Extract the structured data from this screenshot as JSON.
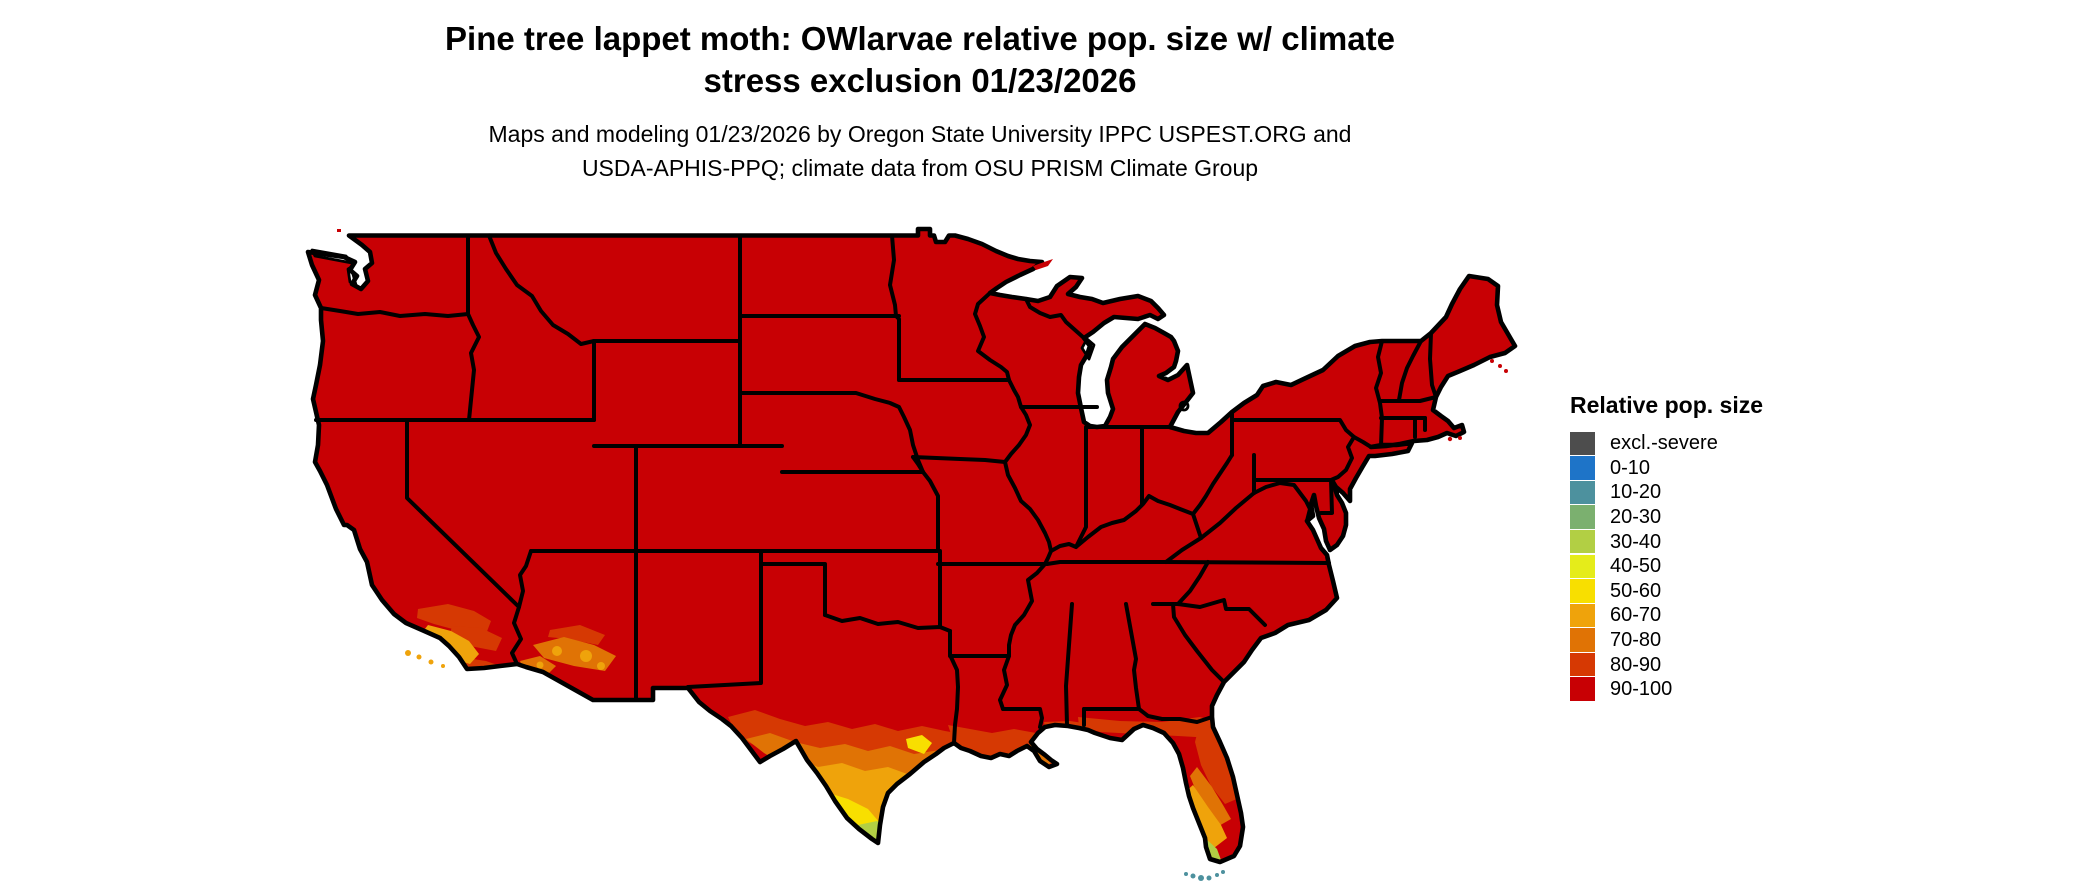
{
  "header": {
    "title": "Pine tree lappet moth: OWlarvae relative pop. size w/ climate\nstress exclusion 01/23/2026",
    "subtitle": "Maps and modeling 01/23/2026 by Oregon State University IPPC USPEST.ORG and\nUSDA-APHIS-PPQ; climate data from OSU PRISM Climate Group"
  },
  "legend": {
    "title": "Relative pop. size",
    "items": [
      {
        "label": "excl.-severe",
        "color": "#4d4d4d"
      },
      {
        "label": "0-10",
        "color": "#1e74c8"
      },
      {
        "label": "10-20",
        "color": "#4d919e"
      },
      {
        "label": "20-30",
        "color": "#7bb06f"
      },
      {
        "label": "30-40",
        "color": "#b2cf44"
      },
      {
        "label": "40-50",
        "color": "#e5ec1a"
      },
      {
        "label": "50-60",
        "color": "#f8df00"
      },
      {
        "label": "60-70",
        "color": "#efa30b"
      },
      {
        "label": "70-80",
        "color": "#e07305"
      },
      {
        "label": "80-90",
        "color": "#d63903"
      },
      {
        "label": "90-100",
        "color": "#c80004"
      }
    ]
  },
  "map": {
    "region": "Contiguous United States",
    "border_color": "#000000",
    "water_color": "#ffffff",
    "dominant_class": "90-100",
    "low_value_areas": [
      "southern Texas (Rio Grande Valley down to 30-40)",
      "central and southern Florida (60-70 to 30-40), Florida Keys 10-20",
      "Gulf Coast fringe of Louisiana, Mississippi, Alabama (80-90)",
      "southern California coast and Channel Islands (80-90 to 60-70)",
      "southwestern Arizona (70-80 with 60-70 spots)"
    ]
  }
}
